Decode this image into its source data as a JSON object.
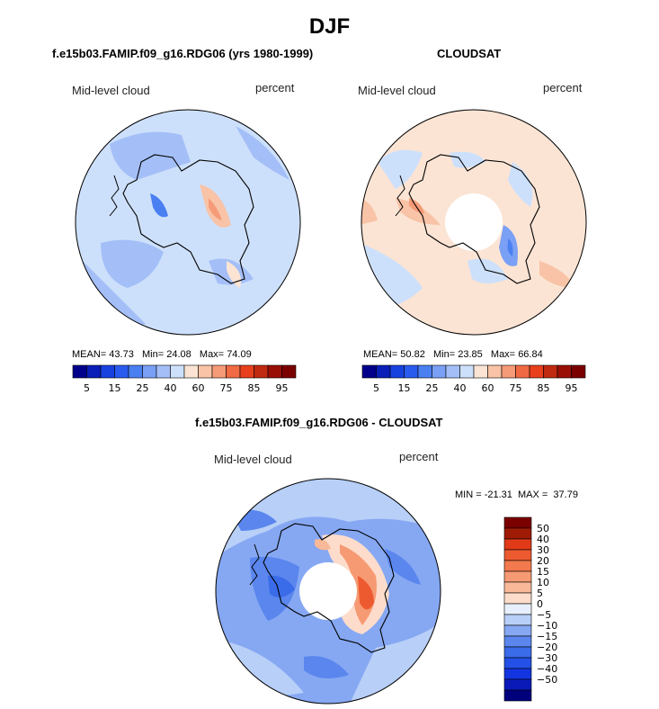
{
  "title": "DJF",
  "panels": [
    {
      "subtitle": "f.e15b03.FAMIP.f09_g16.RDG06 (yrs 1980-1999)",
      "left_note": "Mid-level cloud",
      "right_note": "percent",
      "stats": {
        "mean_label": "MEAN=",
        "mean": "43.73",
        "min_label": "Min=",
        "min": "24.08",
        "max_label": "Max=",
        "max": "74.09"
      }
    },
    {
      "subtitle": "CLOUDSAT",
      "left_note": "Mid-level cloud",
      "right_note": "percent",
      "stats": {
        "mean_label": "MEAN=",
        "mean": "50.82",
        "min_label": "Min=",
        "min": "23.85",
        "max_label": "Max=",
        "max": "66.84"
      }
    },
    {
      "subtitle": "f.e15b03.FAMIP.f09_g16.RDG06 - CLOUDSAT",
      "left_note": "Mid-level cloud",
      "right_note": "percent",
      "minmax": "MIN = -21.31  MAX =  37.79"
    }
  ],
  "colors": {
    "land_outline": "#000000",
    "missing": "#ffffff",
    "abs_scale": [
      "#00008b",
      "#0a1fb8",
      "#1842e0",
      "#2a5bef",
      "#4a7ff2",
      "#7aa0f5",
      "#a4bff8",
      "#cde0fb",
      "#fbe4d4",
      "#f8c3a6",
      "#f59b77",
      "#f06a43",
      "#e8401c",
      "#c02a10",
      "#990f05",
      "#7a0000"
    ],
    "diff_scale": [
      "#00007d",
      "#0a1ab8",
      "#1335e0",
      "#2350e6",
      "#3a6be8",
      "#5a86ee",
      "#86a8f3",
      "#b8cff8",
      "#e8f0fd",
      "#fddccb",
      "#f9b999",
      "#f69a73",
      "#f27a4e",
      "#ee5a30",
      "#e03a18",
      "#a01b06",
      "#7a0000"
    ]
  },
  "chart_data": [
    {
      "type": "heatmap",
      "projection": "south-polar stereographic",
      "title": "f.e15b03.FAMIP.f09_g16.RDG06 (yrs 1980-1999)",
      "variable": "Mid-level cloud",
      "units": "percent",
      "mean": 43.73,
      "min": 24.08,
      "max": 74.09,
      "colorbar_levels": [
        5,
        10,
        15,
        20,
        25,
        30,
        40,
        50,
        60,
        70,
        75,
        80,
        85,
        90,
        95
      ],
      "colorbar_tick_labels": [
        "5",
        "15",
        "25",
        "40",
        "60",
        "75",
        "85",
        "95"
      ]
    },
    {
      "type": "heatmap",
      "projection": "south-polar stereographic",
      "title": "CLOUDSAT",
      "variable": "Mid-level cloud",
      "units": "percent",
      "mean": 50.82,
      "min": 23.85,
      "max": 66.84,
      "colorbar_levels": [
        5,
        10,
        15,
        20,
        25,
        30,
        40,
        50,
        60,
        70,
        75,
        80,
        85,
        90,
        95
      ],
      "colorbar_tick_labels": [
        "5",
        "15",
        "25",
        "40",
        "60",
        "75",
        "85",
        "95"
      ]
    },
    {
      "type": "heatmap",
      "projection": "south-polar stereographic",
      "title": "f.e15b03.FAMIP.f09_g16.RDG06 - CLOUDSAT",
      "variable": "Mid-level cloud",
      "units": "percent",
      "min": -21.31,
      "max": 37.79,
      "colorbar_levels": [
        -50,
        -40,
        -30,
        -20,
        -15,
        -10,
        -5,
        0,
        5,
        10,
        15,
        20,
        30,
        40,
        50
      ],
      "colorbar_tick_labels": [
        "50",
        "40",
        "30",
        "20",
        "15",
        "10",
        "5",
        "0",
        "−5",
        "−10",
        "−15",
        "−20",
        "−30",
        "−40",
        "−50"
      ]
    }
  ]
}
